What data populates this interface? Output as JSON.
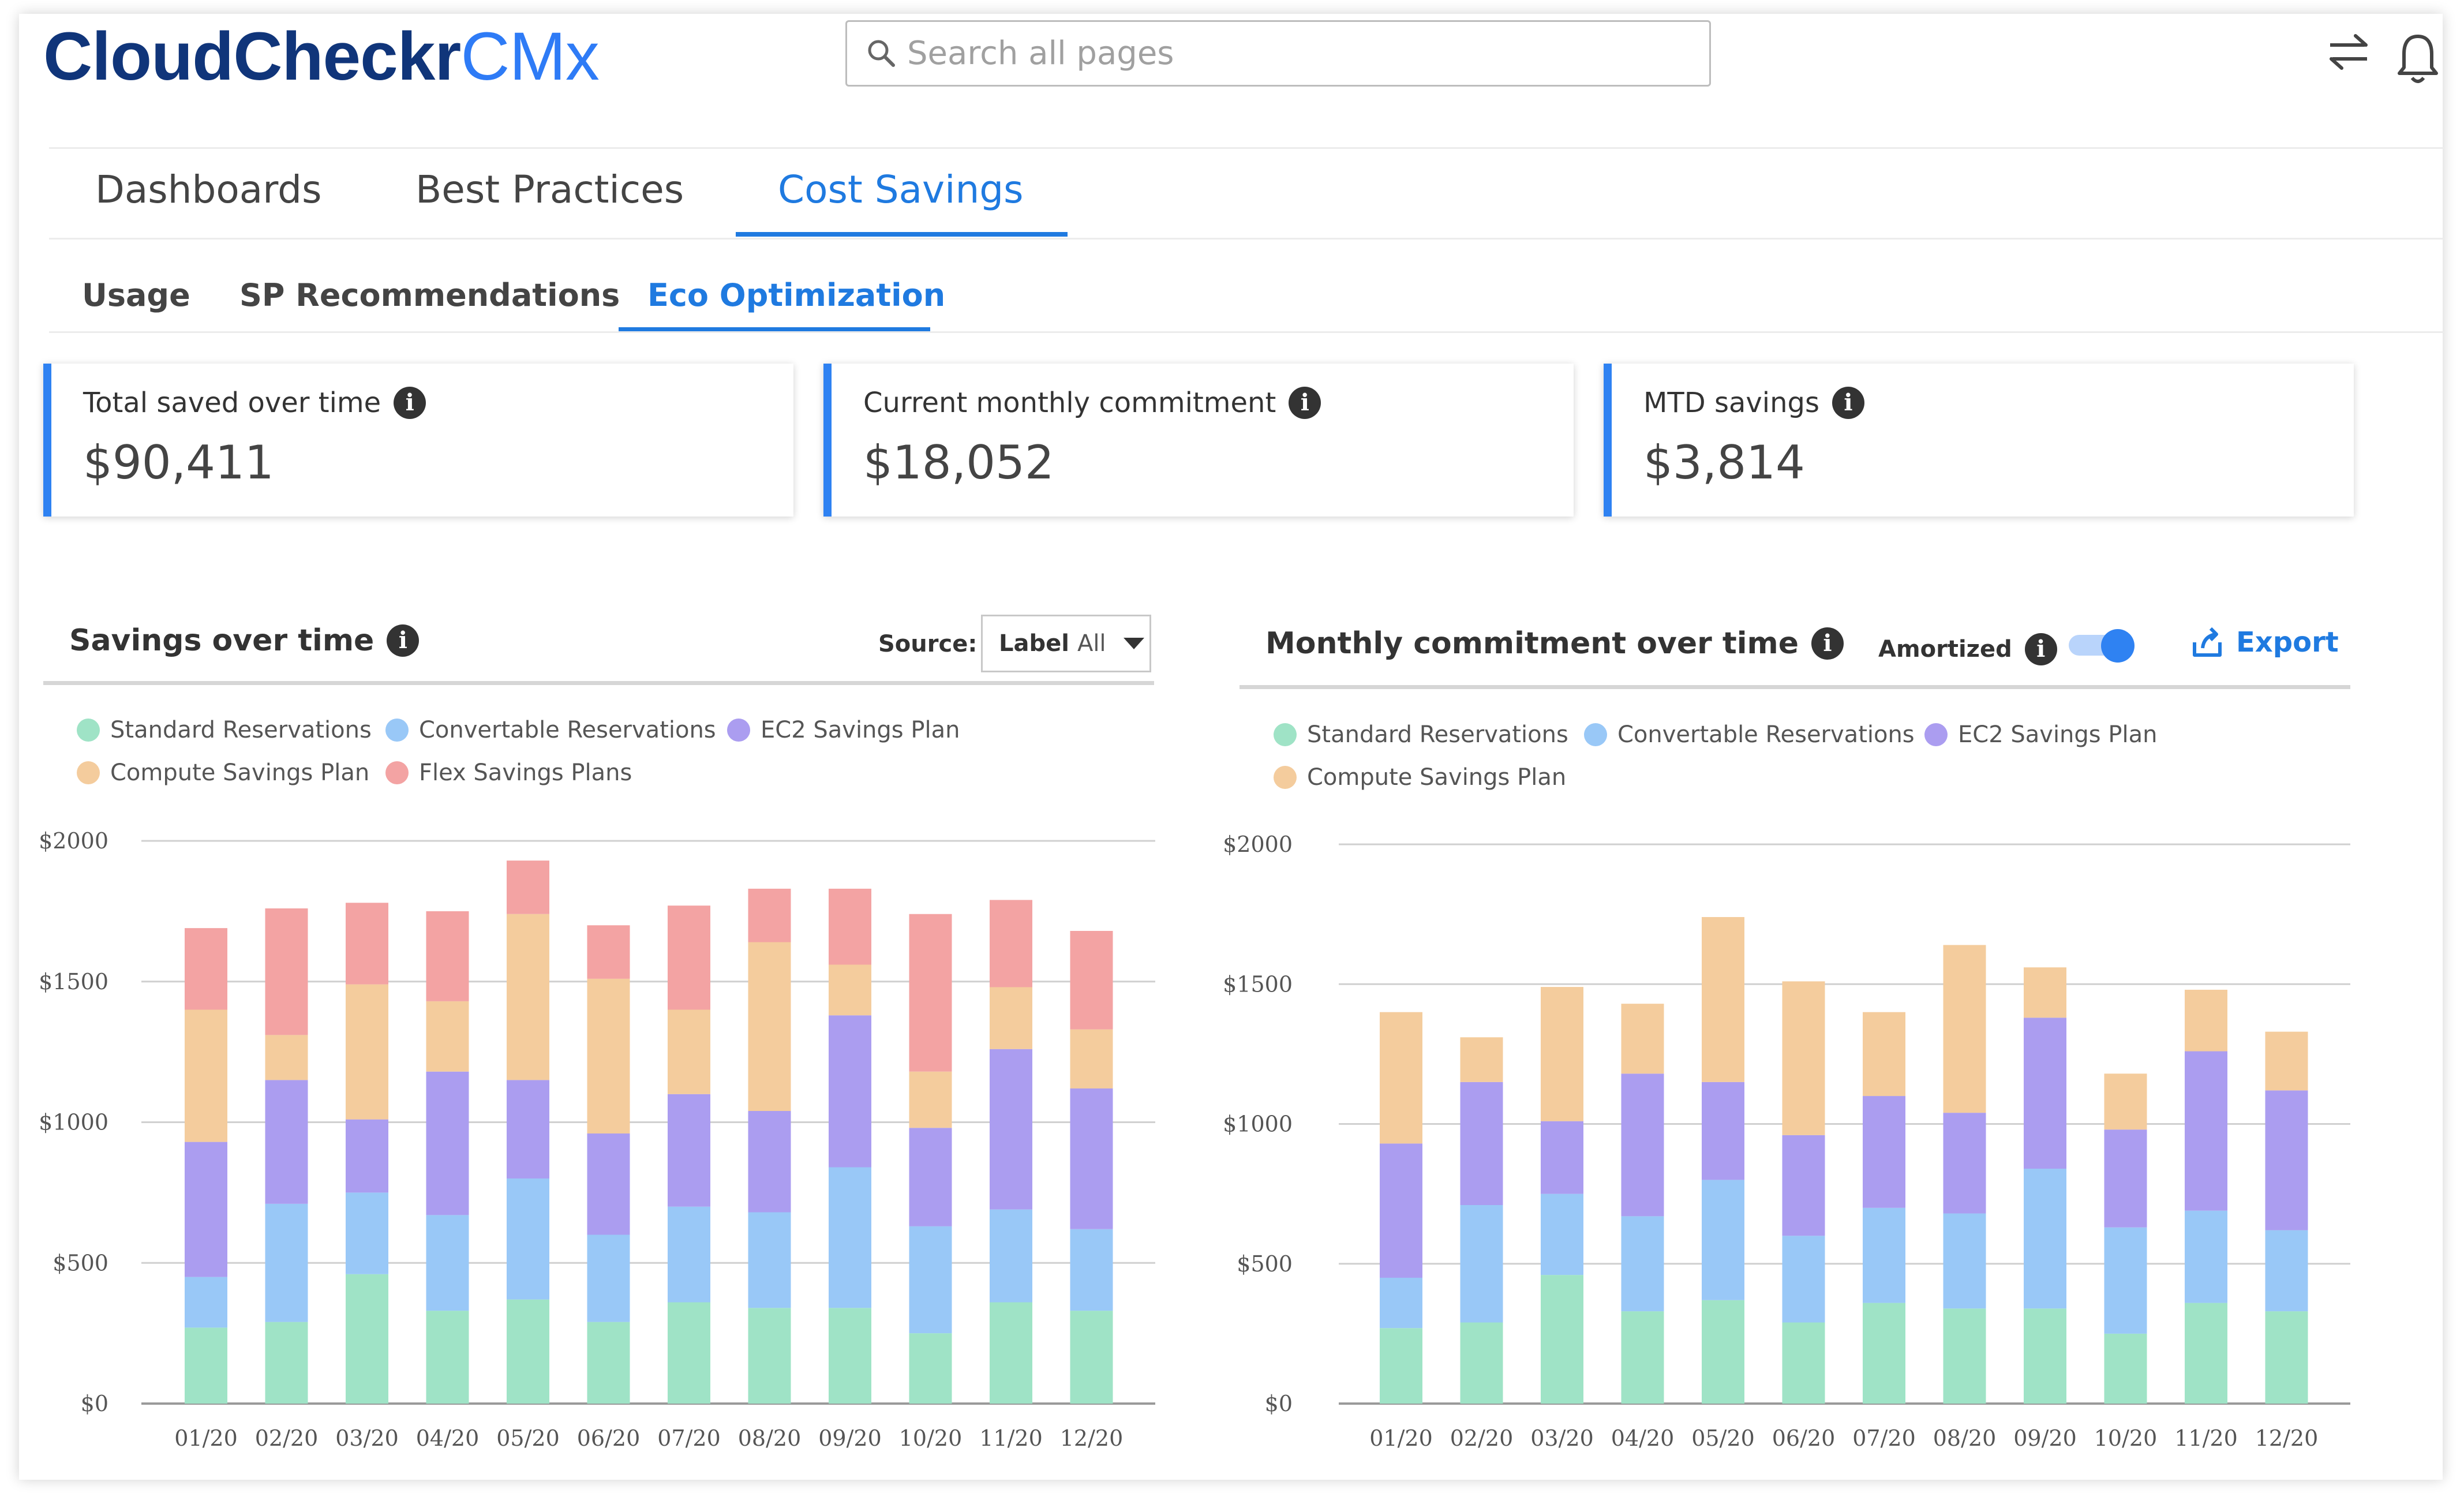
{
  "header": {
    "logo_main": "CloudCheckr",
    "logo_sub": "CMx",
    "search_placeholder": "Search all pages",
    "icons": [
      "switch-arrows-icon",
      "bell-icon"
    ]
  },
  "nav": {
    "tabs": [
      {
        "label": "Dashboards"
      },
      {
        "label": "Best Practices"
      },
      {
        "label": "Cost Savings",
        "active": true
      }
    ],
    "subtabs": [
      {
        "label": "Usage"
      },
      {
        "label": "SP Recommendations"
      },
      {
        "label": "Eco Optimization",
        "active": true
      }
    ]
  },
  "cards": [
    {
      "title": "Total saved over time",
      "value": "$90,411"
    },
    {
      "title": "Current monthly commitment",
      "value": "$18,052"
    },
    {
      "title": "MTD savings",
      "value": "$3,814"
    }
  ],
  "colors": {
    "accent": "#1f7ae0",
    "standard": "#9fe3c6",
    "convertable": "#99c8f7",
    "ec2": "#ab9df0",
    "compute": "#f4cc9d",
    "flex": "#f3a3a3"
  },
  "savings_panel": {
    "title": "Savings over time",
    "source_label": "Source:",
    "select_label": "Label",
    "select_value": "All"
  },
  "commitment_panel": {
    "title": "Monthly commitment over time",
    "amortized_label": "Amortized",
    "amortized_on": true,
    "export_label": "Export"
  },
  "chart_data": [
    {
      "type": "bar",
      "stacked": true,
      "title": "Savings over time",
      "categories": [
        "01/20",
        "02/20",
        "03/20",
        "04/20",
        "05/20",
        "06/20",
        "07/20",
        "08/20",
        "09/20",
        "10/20",
        "11/20",
        "12/20"
      ],
      "ylim": [
        0,
        2000
      ],
      "yticks": [
        0,
        500,
        1000,
        1500,
        2000
      ],
      "ytick_labels": [
        "$0",
        "$500",
        "$1000",
        "$1500",
        "$2000"
      ],
      "legend": [
        "Standard Reservations",
        "Convertable Reservations",
        "EC2 Savings Plan",
        "Compute Savings Plan",
        "Flex Savings Plans"
      ],
      "series": [
        {
          "name": "Standard Reservations",
          "color": "#9fe3c6",
          "values": [
            270,
            290,
            460,
            330,
            370,
            290,
            360,
            340,
            340,
            250,
            360,
            330
          ]
        },
        {
          "name": "Convertable Reservations",
          "color": "#99c8f7",
          "values": [
            180,
            420,
            290,
            340,
            430,
            310,
            340,
            340,
            500,
            380,
            330,
            290
          ]
        },
        {
          "name": "EC2 Savings Plan",
          "color": "#ab9df0",
          "values": [
            480,
            440,
            260,
            510,
            350,
            360,
            400,
            360,
            540,
            350,
            570,
            500
          ]
        },
        {
          "name": "Compute Savings Plan",
          "color": "#f4cc9d",
          "values": [
            470,
            160,
            480,
            250,
            590,
            550,
            300,
            600,
            180,
            200,
            220,
            210
          ]
        },
        {
          "name": "Flex Savings Plans",
          "color": "#f3a3a3",
          "values": [
            290,
            450,
            290,
            320,
            190,
            190,
            370,
            190,
            270,
            560,
            310,
            350
          ]
        }
      ]
    },
    {
      "type": "bar",
      "stacked": true,
      "title": "Monthly commitment over time",
      "categories": [
        "01/20",
        "02/20",
        "03/20",
        "04/20",
        "05/20",
        "06/20",
        "07/20",
        "08/20",
        "09/20",
        "10/20",
        "11/20",
        "12/20"
      ],
      "ylim": [
        0,
        2000
      ],
      "yticks": [
        0,
        500,
        1000,
        1500,
        2000
      ],
      "ytick_labels": [
        "$0",
        "$500",
        "$1000",
        "$1500",
        "$2000"
      ],
      "legend": [
        "Standard Reservations",
        "Convertable Reservations",
        "EC2 Savings Plan",
        "Compute Savings Plan"
      ],
      "series": [
        {
          "name": "Standard Reservations",
          "color": "#9fe3c6",
          "values": [
            270,
            290,
            460,
            330,
            370,
            290,
            360,
            340,
            340,
            250,
            360,
            330
          ]
        },
        {
          "name": "Convertable Reservations",
          "color": "#99c8f7",
          "values": [
            180,
            420,
            290,
            340,
            430,
            310,
            340,
            340,
            500,
            380,
            330,
            290
          ]
        },
        {
          "name": "EC2 Savings Plan",
          "color": "#ab9df0",
          "values": [
            480,
            440,
            260,
            510,
            350,
            360,
            400,
            360,
            540,
            350,
            570,
            500
          ]
        },
        {
          "name": "Compute Savings Plan",
          "color": "#f4cc9d",
          "values": [
            470,
            160,
            480,
            250,
            590,
            550,
            300,
            600,
            180,
            200,
            220,
            210
          ]
        }
      ]
    }
  ]
}
